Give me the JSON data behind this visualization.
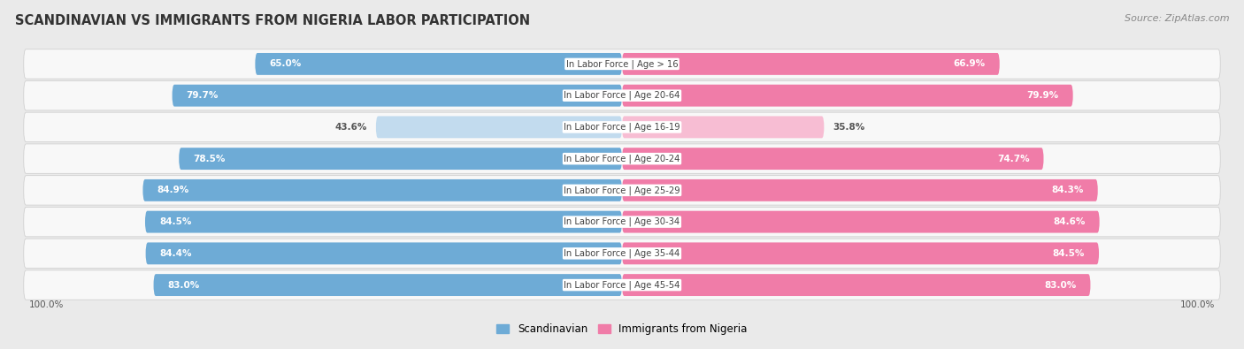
{
  "title": "SCANDINAVIAN VS IMMIGRANTS FROM NIGERIA LABOR PARTICIPATION",
  "source": "Source: ZipAtlas.com",
  "categories": [
    "In Labor Force | Age > 16",
    "In Labor Force | Age 20-64",
    "In Labor Force | Age 16-19",
    "In Labor Force | Age 20-24",
    "In Labor Force | Age 25-29",
    "In Labor Force | Age 30-34",
    "In Labor Force | Age 35-44",
    "In Labor Force | Age 45-54"
  ],
  "scandinavian": [
    65.0,
    79.7,
    43.6,
    78.5,
    84.9,
    84.5,
    84.4,
    83.0
  ],
  "nigeria": [
    66.9,
    79.9,
    35.8,
    74.7,
    84.3,
    84.6,
    84.5,
    83.0
  ],
  "scand_color": "#6eabd6",
  "scand_color_light": "#c2dbee",
  "nigeria_color": "#f07ca8",
  "nigeria_color_light": "#f7bdd3",
  "bg_color": "#eaeaea",
  "row_bg": "#f8f8f8",
  "row_bg_alt": "#f0f0f0",
  "max_val": 100.0,
  "center_label_color": "#444444",
  "bar_height": 0.68,
  "legend_scand": "Scandinavian",
  "legend_nigeria": "Immigrants from Nigeria",
  "title_fontsize": 10.5,
  "source_fontsize": 8,
  "label_fontsize": 7.5,
  "cat_fontsize": 7.2,
  "axis_label_fontsize": 7.5
}
